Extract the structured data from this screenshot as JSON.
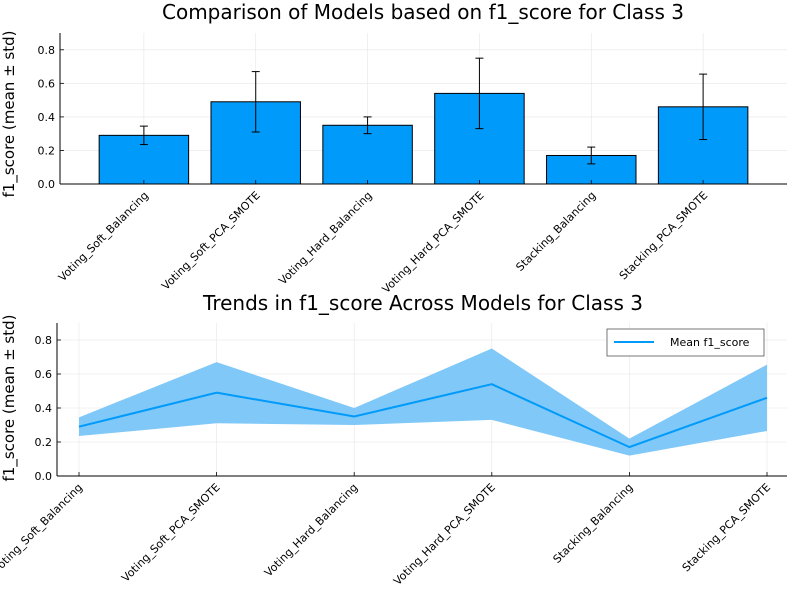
{
  "chart_data": [
    {
      "type": "bar",
      "title": "Comparison of Models based on f1_score for Class 3",
      "xlabel": "",
      "ylabel": "f1_score (mean ± std)",
      "categories": [
        "Voting_Soft_Balancing",
        "Voting_Soft_PCA_SMOTE",
        "Voting_Hard_Balancing",
        "Voting_Hard_PCA_SMOTE",
        "Stacking_Balancing",
        "Stacking_PCA_SMOTE"
      ],
      "values": [
        0.29,
        0.49,
        0.35,
        0.54,
        0.17,
        0.46
      ],
      "std": [
        0.055,
        0.18,
        0.05,
        0.21,
        0.05,
        0.195
      ],
      "ylim": [
        0,
        0.9
      ],
      "yticks": [
        0.0,
        0.2,
        0.4,
        0.6,
        0.8
      ],
      "ytick_labels": [
        "0.0",
        "0.2",
        "0.4",
        "0.6",
        "0.8"
      ],
      "grid": true,
      "bar_color": "#009AFA"
    },
    {
      "type": "line",
      "title": "Trends in f1_score Across Models for Class 3",
      "xlabel": "",
      "ylabel": "f1_score (mean ± std)",
      "categories": [
        "Voting_Soft_Balancing",
        "Voting_Soft_PCA_SMOTE",
        "Voting_Hard_Balancing",
        "Voting_Hard_PCA_SMOTE",
        "Stacking_Balancing",
        "Stacking_PCA_SMOTE"
      ],
      "series": [
        {
          "name": "Mean f1_score",
          "values": [
            0.29,
            0.49,
            0.35,
            0.54,
            0.17,
            0.46
          ]
        }
      ],
      "band_lower": [
        0.235,
        0.31,
        0.3,
        0.33,
        0.12,
        0.265
      ],
      "band_upper": [
        0.345,
        0.67,
        0.4,
        0.75,
        0.22,
        0.655
      ],
      "ylim": [
        0,
        0.9
      ],
      "yticks": [
        0.0,
        0.2,
        0.4,
        0.6,
        0.8
      ],
      "ytick_labels": [
        "0.0",
        "0.2",
        "0.4",
        "0.6",
        "0.8"
      ],
      "grid": true,
      "legend_position": "top-right",
      "line_color": "#009AFA",
      "band_color": "#7FC8F8"
    }
  ]
}
